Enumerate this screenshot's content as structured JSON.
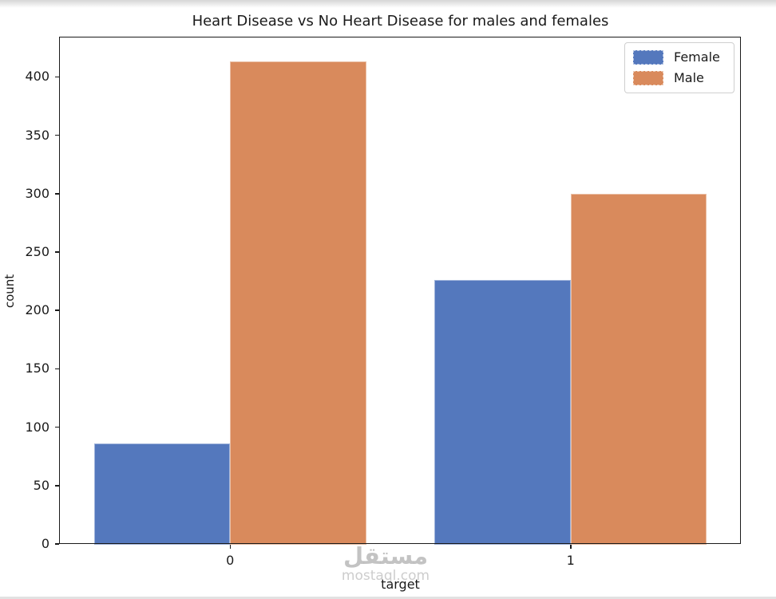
{
  "chart_data": {
    "type": "bar",
    "title": "Heart Disease vs No Heart Disease for males and females",
    "xlabel": "target",
    "ylabel": "count",
    "categories": [
      "0",
      "1"
    ],
    "series": [
      {
        "name": "Female",
        "color": "#5478bd",
        "values": [
          86,
          226
        ]
      },
      {
        "name": "Male",
        "color": "#d98a5c",
        "values": [
          413,
          300
        ]
      }
    ],
    "yticks": [
      0,
      50,
      100,
      150,
      200,
      250,
      300,
      350,
      400
    ],
    "ylim": [
      0,
      433.7
    ],
    "grid": false,
    "legend_position": "upper right"
  },
  "watermark": {
    "logo_text": "مستقل",
    "site_text": "mostaql.com"
  }
}
